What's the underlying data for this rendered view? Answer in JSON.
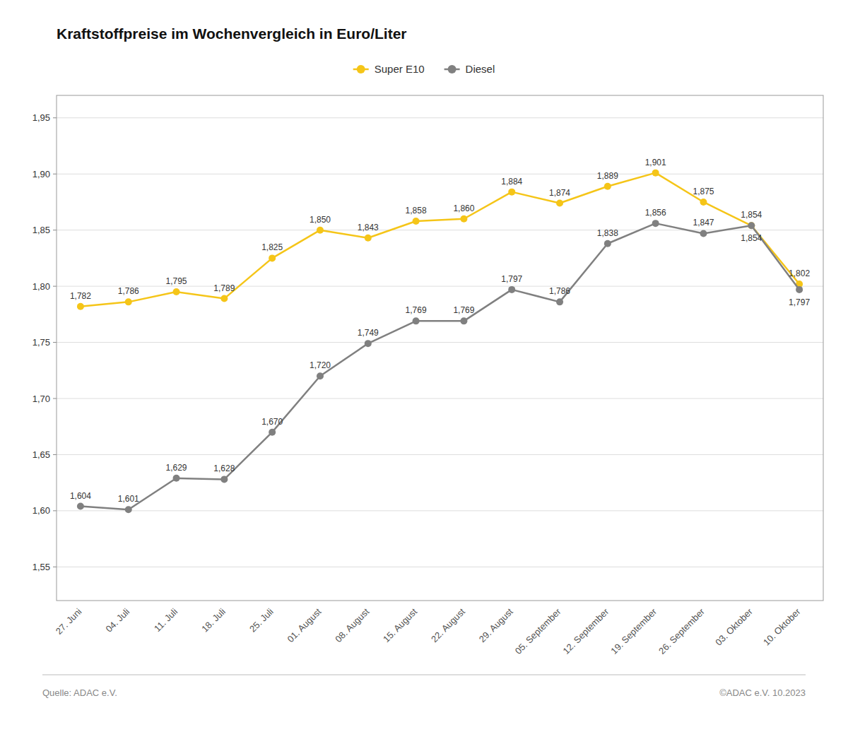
{
  "chart_data": {
    "type": "line",
    "title": "Kraftstoffpreise im Wochenvergleich in Euro/Liter",
    "categories": [
      "27. Juni",
      "04. Juli",
      "11. Juli",
      "18. Juli",
      "25. Juli",
      "01. August",
      "08. August",
      "15. August",
      "22. August",
      "29. August",
      "05. September",
      "12. September",
      "19. September",
      "26. September",
      "03. Oktober",
      "10. Oktober"
    ],
    "series": [
      {
        "name": "Super E10",
        "color": "#F5C518",
        "marker": "circle",
        "line_style": "solid",
        "values": [
          1.782,
          1.786,
          1.795,
          1.789,
          1.825,
          1.85,
          1.843,
          1.858,
          1.86,
          1.884,
          1.874,
          1.889,
          1.901,
          1.875,
          1.854,
          1.802
        ],
        "value_labels": [
          "1,782",
          "1,786",
          "1,795",
          "1,789",
          "1,825",
          "1,850",
          "1,843",
          "1,858",
          "1,860",
          "1,884",
          "1,874",
          "1,889",
          "1,901",
          "1,875",
          "1,854",
          "1,802"
        ]
      },
      {
        "name": "Diesel",
        "color": "#808080",
        "marker": "circle",
        "line_style": "solid",
        "values": [
          1.604,
          1.601,
          1.629,
          1.628,
          1.67,
          1.72,
          1.749,
          1.769,
          1.769,
          1.797,
          1.786,
          1.838,
          1.856,
          1.847,
          1.854,
          1.797
        ],
        "value_labels": [
          "1,604",
          "1,601",
          "1,629",
          "1,628",
          "1,670",
          "1,720",
          "1,749",
          "1,769",
          "1,769",
          "1,797",
          "1,786",
          "1,838",
          "1,856",
          "1,847",
          "1,854",
          "1,797"
        ]
      }
    ],
    "ylim": [
      1.52,
      1.97
    ],
    "yticks": [
      {
        "value": 1.55,
        "label": "1,55"
      },
      {
        "value": 1.6,
        "label": "1,60"
      },
      {
        "value": 1.65,
        "label": "1,65"
      },
      {
        "value": 1.7,
        "label": "1,70"
      },
      {
        "value": 1.75,
        "label": "1,75"
      },
      {
        "value": 1.8,
        "label": "1,80"
      },
      {
        "value": 1.85,
        "label": "1,85"
      },
      {
        "value": 1.9,
        "label": "1,90"
      },
      {
        "value": 1.95,
        "label": "1,95"
      }
    ],
    "grid": true,
    "legend": "top",
    "data_labels": true,
    "annotations": [
      "Quelle: ADAC e.V.",
      "©ADAC e.V. 10.2023"
    ]
  }
}
